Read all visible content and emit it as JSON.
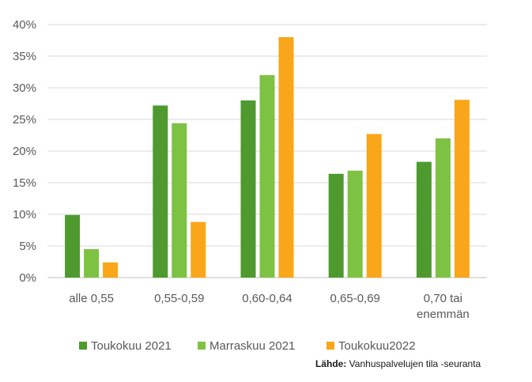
{
  "chart_data": {
    "type": "bar",
    "categories": [
      [
        "alle 0,55"
      ],
      [
        "0,55-0,59"
      ],
      [
        "0,60-0,64"
      ],
      [
        "0,65-0,69"
      ],
      [
        "0,70 tai",
        "enemmän"
      ]
    ],
    "series": [
      {
        "name": "Toukokuu 2021",
        "color": "#4e9a2e",
        "values": [
          9.9,
          27.2,
          28.0,
          16.4,
          18.3
        ]
      },
      {
        "name": "Marraskuu 2021",
        "color": "#7dc242",
        "values": [
          4.5,
          24.4,
          32.0,
          16.9,
          22.0
        ]
      },
      {
        "name": "Toukokuu2022",
        "color": "#f9a61a",
        "values": [
          2.4,
          8.8,
          38.0,
          22.7,
          28.1
        ]
      }
    ],
    "ylim": [
      0,
      40
    ],
    "yticks": [
      0,
      5,
      10,
      15,
      20,
      25,
      30,
      35,
      40
    ],
    "ytick_labels": [
      "0%",
      "5%",
      "10%",
      "15%",
      "20%",
      "25%",
      "30%",
      "35%",
      "40%"
    ],
    "grid": true,
    "legend_position": "bottom"
  },
  "source": {
    "label": "Lähde:",
    "text": " Vanhuspalvelujen tila -seuranta"
  }
}
